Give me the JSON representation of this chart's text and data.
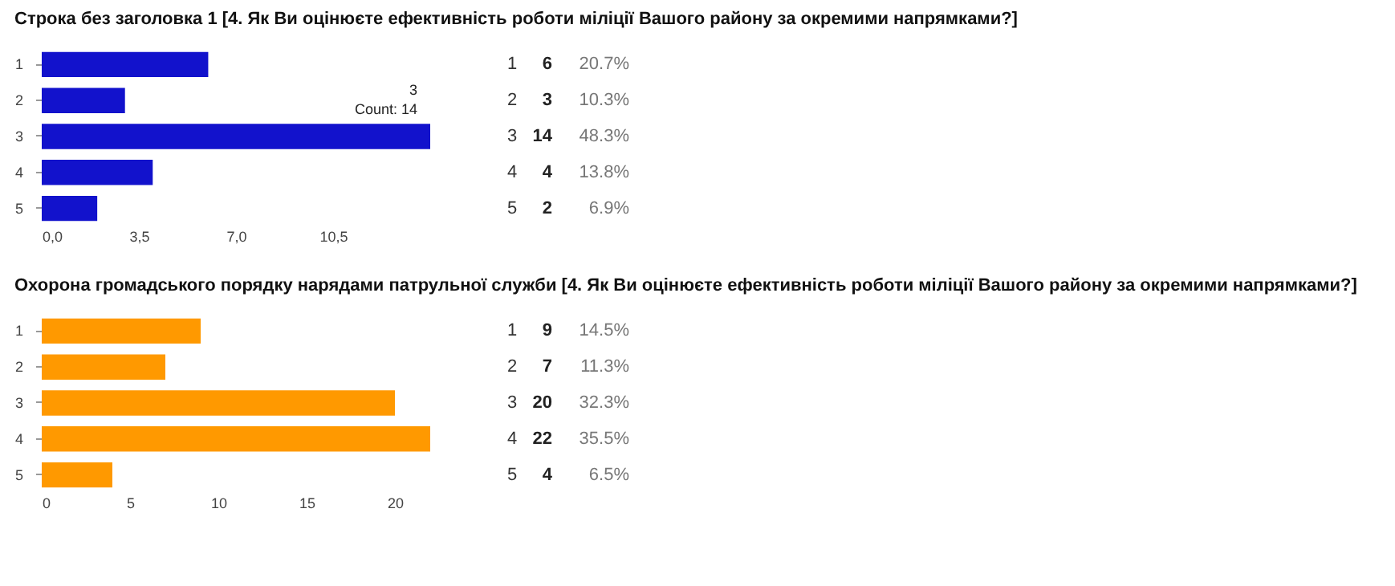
{
  "chart_data": [
    {
      "type": "bar",
      "orientation": "horizontal",
      "title": "Строка без заголовка 1 [4. Як Ви оцінюєте ефективність роботи міліції Вашого району за окремими напрямками?]",
      "categories": [
        "1",
        "2",
        "3",
        "4",
        "5"
      ],
      "values": [
        6,
        3,
        14,
        4,
        2
      ],
      "color": "#1212cc",
      "xlim": [
        0,
        14
      ],
      "xticks": [
        {
          "value": 0,
          "label": "0,0"
        },
        {
          "value": 3.5,
          "label": "3,5"
        },
        {
          "value": 7,
          "label": "7,0"
        },
        {
          "value": 10.5,
          "label": "10,5"
        }
      ],
      "grid": false,
      "data_labels": true,
      "annotations": [
        {
          "text": "3\nCount: 14",
          "x": 14,
          "y": "3"
        },
        "20.7%",
        "10.3%",
        "48.3%",
        "13.8%",
        "6.9%"
      ]
    },
    {
      "type": "bar",
      "orientation": "horizontal",
      "title": "Охорона громадського порядку нарядами патрульної служби [4. Як Ви оцінюєте ефективність роботи міліції Вашого району за окремими напрямками?]",
      "categories": [
        "1",
        "2",
        "3",
        "4",
        "5"
      ],
      "values": [
        9,
        7,
        20,
        22,
        4
      ],
      "color": "#ff9900",
      "xlim": [
        0,
        22
      ],
      "xticks": [
        0,
        5,
        10,
        15,
        20
      ],
      "grid": false,
      "data_labels": true,
      "annotations": [
        "14.5%",
        "11.3%",
        "32.3%",
        "35.5%",
        "6.5%"
      ]
    }
  ]
}
